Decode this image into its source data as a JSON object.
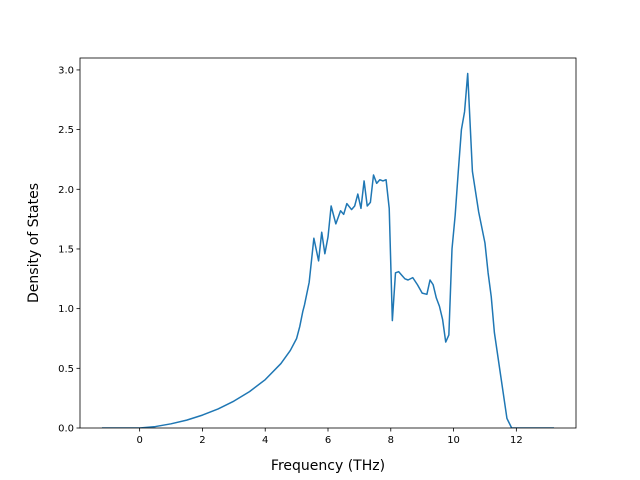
{
  "chart_data": {
    "type": "line",
    "title": "",
    "xlabel": "Frequency (THz)",
    "ylabel": "Density of States",
    "xlim": [
      -1.9,
      13.9
    ],
    "ylim": [
      0.0,
      3.1
    ],
    "xticks": [
      0,
      2,
      4,
      6,
      8,
      10,
      12
    ],
    "yticks": [
      0.0,
      0.5,
      1.0,
      1.5,
      2.0,
      2.5,
      3.0
    ],
    "xtick_labels": [
      "0",
      "2",
      "4",
      "6",
      "8",
      "10",
      "12"
    ],
    "ytick_labels": [
      "0.0",
      "0.5",
      "1.0",
      "1.5",
      "2.0",
      "2.5",
      "3.0"
    ],
    "grid": false,
    "legend": "none",
    "line_color": "#1f77b4",
    "series": [
      {
        "x": [
          -1.2,
          -0.6,
          0.0,
          0.5,
          1.0,
          1.5,
          2.0,
          2.5,
          3.0,
          3.5,
          4.0,
          4.5,
          4.8,
          5.0,
          5.1,
          5.2,
          5.25,
          5.4,
          5.55,
          5.7,
          5.8,
          5.9,
          6.0,
          6.1,
          6.25,
          6.4,
          6.5,
          6.6,
          6.75,
          6.85,
          6.95,
          7.05,
          7.15,
          7.25,
          7.35,
          7.45,
          7.55,
          7.65,
          7.75,
          7.85,
          7.95,
          8.05,
          8.15,
          8.25,
          8.35,
          8.45,
          8.55,
          8.7,
          8.85,
          9.0,
          9.15,
          9.25,
          9.35,
          9.45,
          9.55,
          9.65,
          9.75,
          9.85,
          9.95,
          10.05,
          10.15,
          10.25,
          10.35,
          10.45,
          10.6,
          10.8,
          11.0,
          11.1,
          11.2,
          11.3,
          11.5,
          11.7,
          11.85,
          11.95,
          12.0,
          12.1,
          12.5,
          13.2
        ],
        "y": [
          0.0,
          0.0,
          0.0,
          0.012,
          0.035,
          0.066,
          0.108,
          0.16,
          0.225,
          0.305,
          0.405,
          0.54,
          0.65,
          0.75,
          0.85,
          0.98,
          1.03,
          1.22,
          1.59,
          1.4,
          1.64,
          1.46,
          1.6,
          1.86,
          1.71,
          1.82,
          1.79,
          1.88,
          1.83,
          1.86,
          1.96,
          1.84,
          2.07,
          1.86,
          1.89,
          2.12,
          2.05,
          2.08,
          2.07,
          2.08,
          1.84,
          0.9,
          1.3,
          1.31,
          1.28,
          1.25,
          1.24,
          1.26,
          1.2,
          1.13,
          1.12,
          1.24,
          1.2,
          1.09,
          1.02,
          0.91,
          0.72,
          0.78,
          1.5,
          1.78,
          2.15,
          2.5,
          2.65,
          2.97,
          2.15,
          1.81,
          1.55,
          1.3,
          1.1,
          0.8,
          0.44,
          0.08,
          0.0,
          0.0,
          0.0,
          0.0,
          0.0,
          0.0
        ]
      }
    ]
  }
}
